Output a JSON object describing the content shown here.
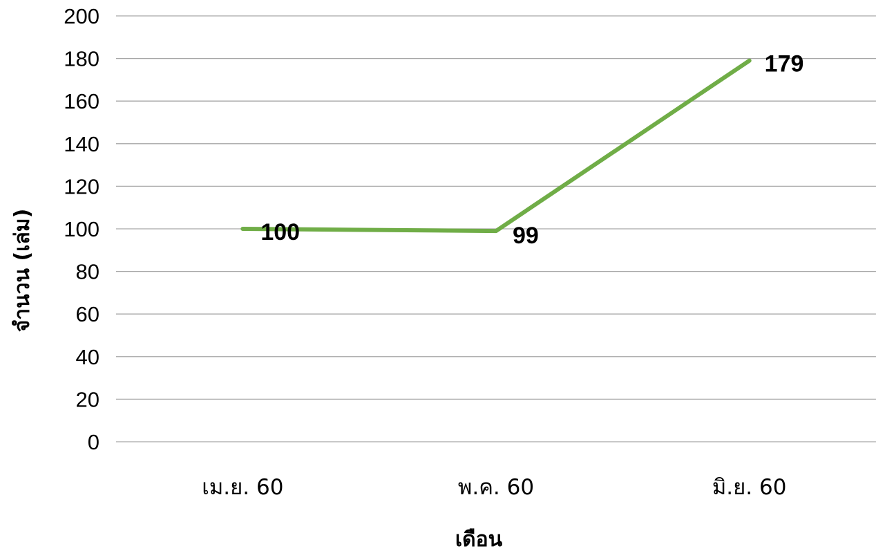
{
  "chart_data": {
    "type": "line",
    "categories": [
      "เม.ย. 60",
      "พ.ค. 60",
      "มิ.ย. 60"
    ],
    "series": [
      {
        "values": [
          100,
          99,
          179
        ],
        "color": "#70ad47"
      }
    ],
    "xlabel": "เดือน",
    "ylabel": "จำนวน (เล่ม)",
    "ylim": [
      0,
      200
    ],
    "yticks": [
      0,
      20,
      40,
      60,
      80,
      100,
      120,
      140,
      160,
      180,
      200
    ],
    "grid": true,
    "data_labels": true,
    "legend": "none",
    "gridline_color": "#a6a6a6"
  }
}
